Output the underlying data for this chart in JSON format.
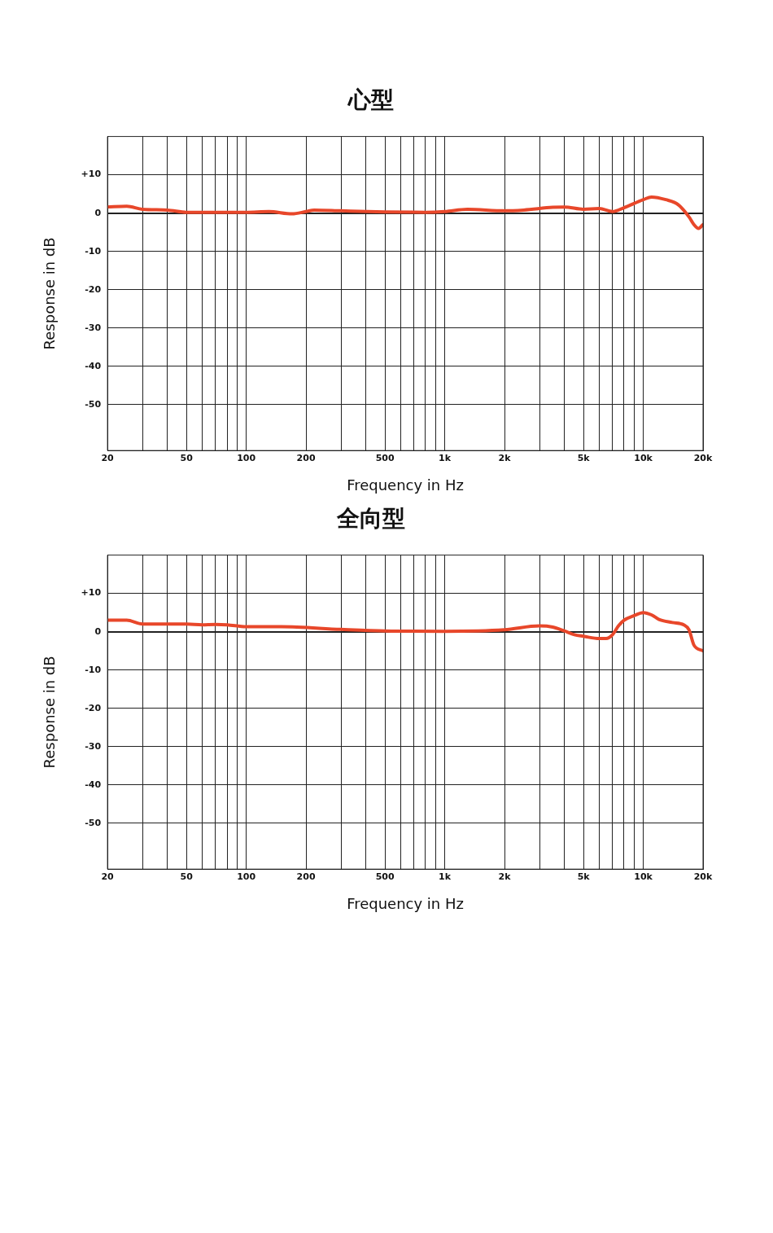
{
  "chart_data": [
    {
      "type": "line",
      "title": "心型",
      "xlabel": "Frequency in Hz",
      "ylabel": "Response in dB",
      "log": "x",
      "grid": true,
      "marker": "none",
      "xlim": [
        20,
        20000
      ],
      "ylim": [
        -62,
        20
      ],
      "xticks": [
        20,
        {
          "value": 30,
          "label": null
        },
        {
          "value": 40,
          "label": null
        },
        50,
        {
          "value": 60,
          "label": null
        },
        {
          "value": 70,
          "label": null
        },
        {
          "value": 80,
          "label": null
        },
        {
          "value": 90,
          "label": null
        },
        100,
        200,
        {
          "value": 300,
          "label": null
        },
        {
          "value": 400,
          "label": null
        },
        500,
        {
          "value": 600,
          "label": null
        },
        {
          "value": 700,
          "label": null
        },
        {
          "value": 800,
          "label": null
        },
        {
          "value": 900,
          "label": null
        },
        {
          "value": 1000,
          "label": "1k"
        },
        {
          "value": 2000,
          "label": "2k"
        },
        {
          "value": 3000,
          "label": null
        },
        {
          "value": 4000,
          "label": null
        },
        {
          "value": 5000,
          "label": "5k"
        },
        {
          "value": 6000,
          "label": null
        },
        {
          "value": 7000,
          "label": null
        },
        {
          "value": 8000,
          "label": null
        },
        {
          "value": 9000,
          "label": null
        },
        {
          "value": 10000,
          "label": "10k"
        },
        {
          "value": 20000,
          "label": "20k"
        }
      ],
      "yticks": [
        {
          "value": 10,
          "label": "+10"
        },
        0,
        -10,
        -20,
        -30,
        -40,
        -50
      ],
      "x": [
        20,
        25,
        30,
        40,
        50,
        100,
        130,
        170,
        200,
        220,
        300,
        500,
        800,
        1000,
        1300,
        2000,
        2500,
        3500,
        4000,
        5000,
        6000,
        7000,
        8000,
        10000,
        11000,
        13000,
        15000,
        17000,
        18000,
        19000,
        20000
      ],
      "series": [
        {
          "color": "#e8472a",
          "values": [
            1.6,
            1.8,
            1.0,
            0.8,
            0.2,
            0.2,
            0.4,
            -0.2,
            0.4,
            0.8,
            0.6,
            0.3,
            0.2,
            0.4,
            1.0,
            0.6,
            0.8,
            1.5,
            1.6,
            1.0,
            1.2,
            0.4,
            1.4,
            3.5,
            4.2,
            3.5,
            2.2,
            -1,
            -3,
            -4,
            -3
          ]
        }
      ]
    },
    {
      "type": "line",
      "title": "全向型",
      "xlabel": "Frequency in Hz",
      "ylabel": "Response in dB",
      "log": "x",
      "grid": true,
      "marker": "none",
      "xlim": [
        20,
        20000
      ],
      "ylim": [
        -62,
        20
      ],
      "xticks": [
        20,
        {
          "value": 30,
          "label": null
        },
        {
          "value": 40,
          "label": null
        },
        50,
        {
          "value": 60,
          "label": null
        },
        {
          "value": 70,
          "label": null
        },
        {
          "value": 80,
          "label": null
        },
        {
          "value": 90,
          "label": null
        },
        100,
        200,
        {
          "value": 300,
          "label": null
        },
        {
          "value": 400,
          "label": null
        },
        500,
        {
          "value": 600,
          "label": null
        },
        {
          "value": 700,
          "label": null
        },
        {
          "value": 800,
          "label": null
        },
        {
          "value": 900,
          "label": null
        },
        {
          "value": 1000,
          "label": "1k"
        },
        {
          "value": 2000,
          "label": "2k"
        },
        {
          "value": 3000,
          "label": null
        },
        {
          "value": 4000,
          "label": null
        },
        {
          "value": 5000,
          "label": "5k"
        },
        {
          "value": 6000,
          "label": null
        },
        {
          "value": 7000,
          "label": null
        },
        {
          "value": 8000,
          "label": null
        },
        {
          "value": 9000,
          "label": null
        },
        {
          "value": 10000,
          "label": "10k"
        },
        {
          "value": 20000,
          "label": "20k"
        }
      ],
      "yticks": [
        {
          "value": 10,
          "label": "+10"
        },
        0,
        -10,
        -20,
        -30,
        -40,
        -50
      ],
      "x": [
        20,
        25,
        30,
        50,
        60,
        70,
        80,
        100,
        150,
        300,
        500,
        1000,
        2000,
        3000,
        3500,
        4000,
        4500,
        5000,
        6000,
        6500,
        7000,
        7500,
        8000,
        9000,
        10000,
        11000,
        12000,
        14000,
        16000,
        17000,
        18000,
        20000
      ],
      "series": [
        {
          "color": "#e8472a",
          "values": [
            3.0,
            3.0,
            2.0,
            2.0,
            1.8,
            1.9,
            1.8,
            1.3,
            1.3,
            0.6,
            0.2,
            0.1,
            0.5,
            1.5,
            1.2,
            0.2,
            -0.8,
            -1.2,
            -1.8,
            -1.8,
            -0.8,
            1.5,
            3,
            4.2,
            5,
            4.4,
            3.2,
            2.4,
            1.8,
            0.5,
            -3.5,
            -5
          ]
        }
      ]
    }
  ]
}
